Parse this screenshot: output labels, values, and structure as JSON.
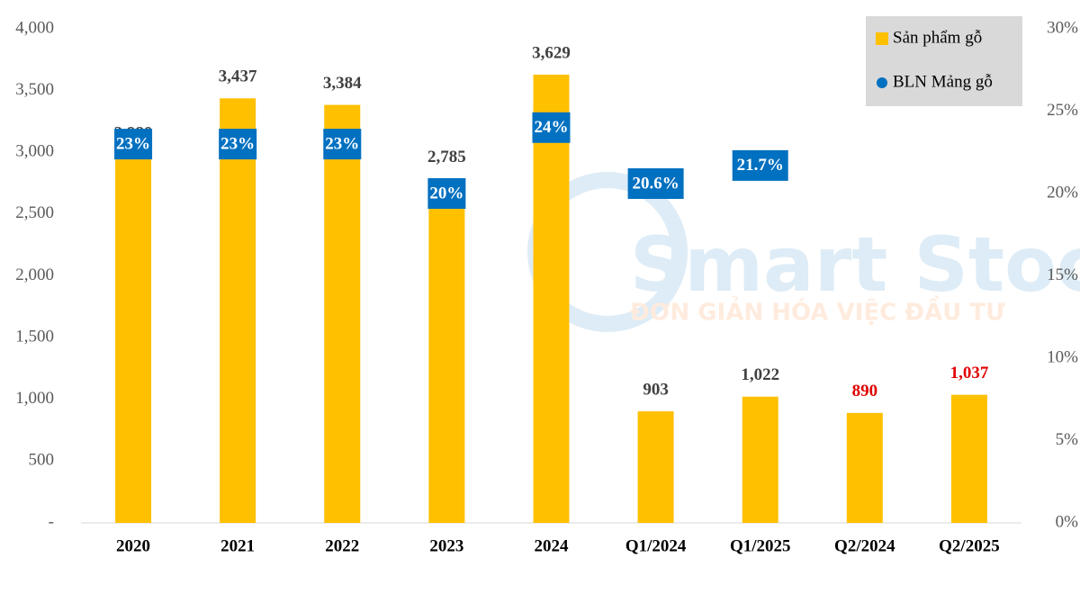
{
  "chart_data": {
    "type": "bar",
    "categories": [
      "2020",
      "2021",
      "2022",
      "2023",
      "2024",
      "Q1/2024",
      "Q1/2025",
      "Q2/2024",
      "Q2/2025"
    ],
    "series": [
      {
        "name": "Sản phẩm gỗ",
        "type": "bar",
        "color": "#ffc000",
        "values": [
          2980,
          3437,
          3384,
          2785,
          3629,
          903,
          1022,
          890,
          1037
        ],
        "value_labels": [
          "2,980",
          "3,437",
          "3,384",
          "2,785",
          "3,629",
          "903",
          "1,022",
          "890",
          "1,037"
        ],
        "value_label_colors": [
          "#404040",
          "#404040",
          "#404040",
          "#404040",
          "#404040",
          "#404040",
          "#404040",
          "#e00000",
          "#e00000"
        ]
      },
      {
        "name": "BLN Mảng gỗ",
        "type": "dot",
        "axis": "y2",
        "color": "#0070c0",
        "values": [
          23,
          23,
          23,
          20,
          24,
          20.6,
          21.7,
          null,
          null
        ],
        "value_labels": [
          "23%",
          "23%",
          "23%",
          "20%",
          "24%",
          "20.6%",
          "21.7%",
          null,
          null
        ]
      }
    ],
    "ylim": [
      0,
      4000
    ],
    "yticks": [
      {
        "value": 0,
        "label": "-"
      },
      500,
      {
        "value": 1000,
        "label": "1,000"
      },
      {
        "value": 1500,
        "label": "1,500"
      },
      {
        "value": 2000,
        "label": "2,000"
      },
      {
        "value": 2500,
        "label": "2,500"
      },
      {
        "value": 3000,
        "label": "3,000"
      },
      {
        "value": 3500,
        "label": "3,500"
      },
      {
        "value": 4000,
        "label": "4,000"
      }
    ],
    "y2lim": [
      0,
      30
    ],
    "y2ticks": [
      {
        "value": 0,
        "label": "0%"
      },
      {
        "value": 5,
        "label": "5%"
      },
      {
        "value": 10,
        "label": "10%"
      },
      {
        "value": 15,
        "label": "15%"
      },
      {
        "value": 20,
        "label": "20%"
      },
      {
        "value": 25,
        "label": "25%"
      },
      {
        "value": 30,
        "label": "30%"
      }
    ],
    "legend": "top-right",
    "watermark": {
      "title": "Smart Stock",
      "subtitle": "ĐƠN GIẢN HÓA VIỆC ĐẦU TƯ"
    }
  }
}
